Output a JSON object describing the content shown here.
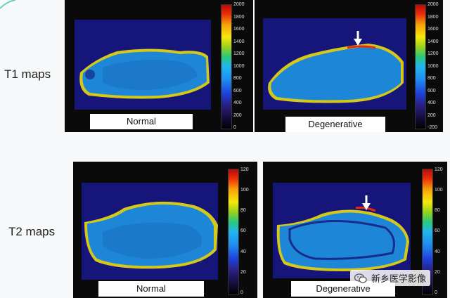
{
  "rows": [
    {
      "label": "T1 maps",
      "panels": [
        {
          "caption": "Normal",
          "colorbar_ticks": [
            "2000",
            "1800",
            "1600",
            "1400",
            "1200",
            "1000",
            "800",
            "600",
            "400",
            "200",
            "0"
          ],
          "arrow": false
        },
        {
          "caption": "Degenerative",
          "colorbar_ticks": [
            "2000",
            "1800",
            "1600",
            "1400",
            "1200",
            "1000",
            "800",
            "600",
            "400",
            "200",
            "-200"
          ],
          "arrow": true
        }
      ]
    },
    {
      "label": "T2 maps",
      "panels": [
        {
          "caption": "Normal",
          "colorbar_ticks": [
            "120",
            "100",
            "80",
            "60",
            "40",
            "20",
            "0"
          ],
          "arrow": false
        },
        {
          "caption": "Degenerative",
          "colorbar_ticks": [
            "120",
            "100",
            "80",
            "60",
            "40",
            "20",
            "0"
          ],
          "arrow": true
        }
      ]
    }
  ],
  "watermark": {
    "text": "新乡医学影像",
    "icon": "wechat-icon"
  },
  "colors": {
    "tissue": "#1e86d6",
    "background": "#15157a",
    "edge": "#f6e80a",
    "arrow": "#ffffff"
  }
}
